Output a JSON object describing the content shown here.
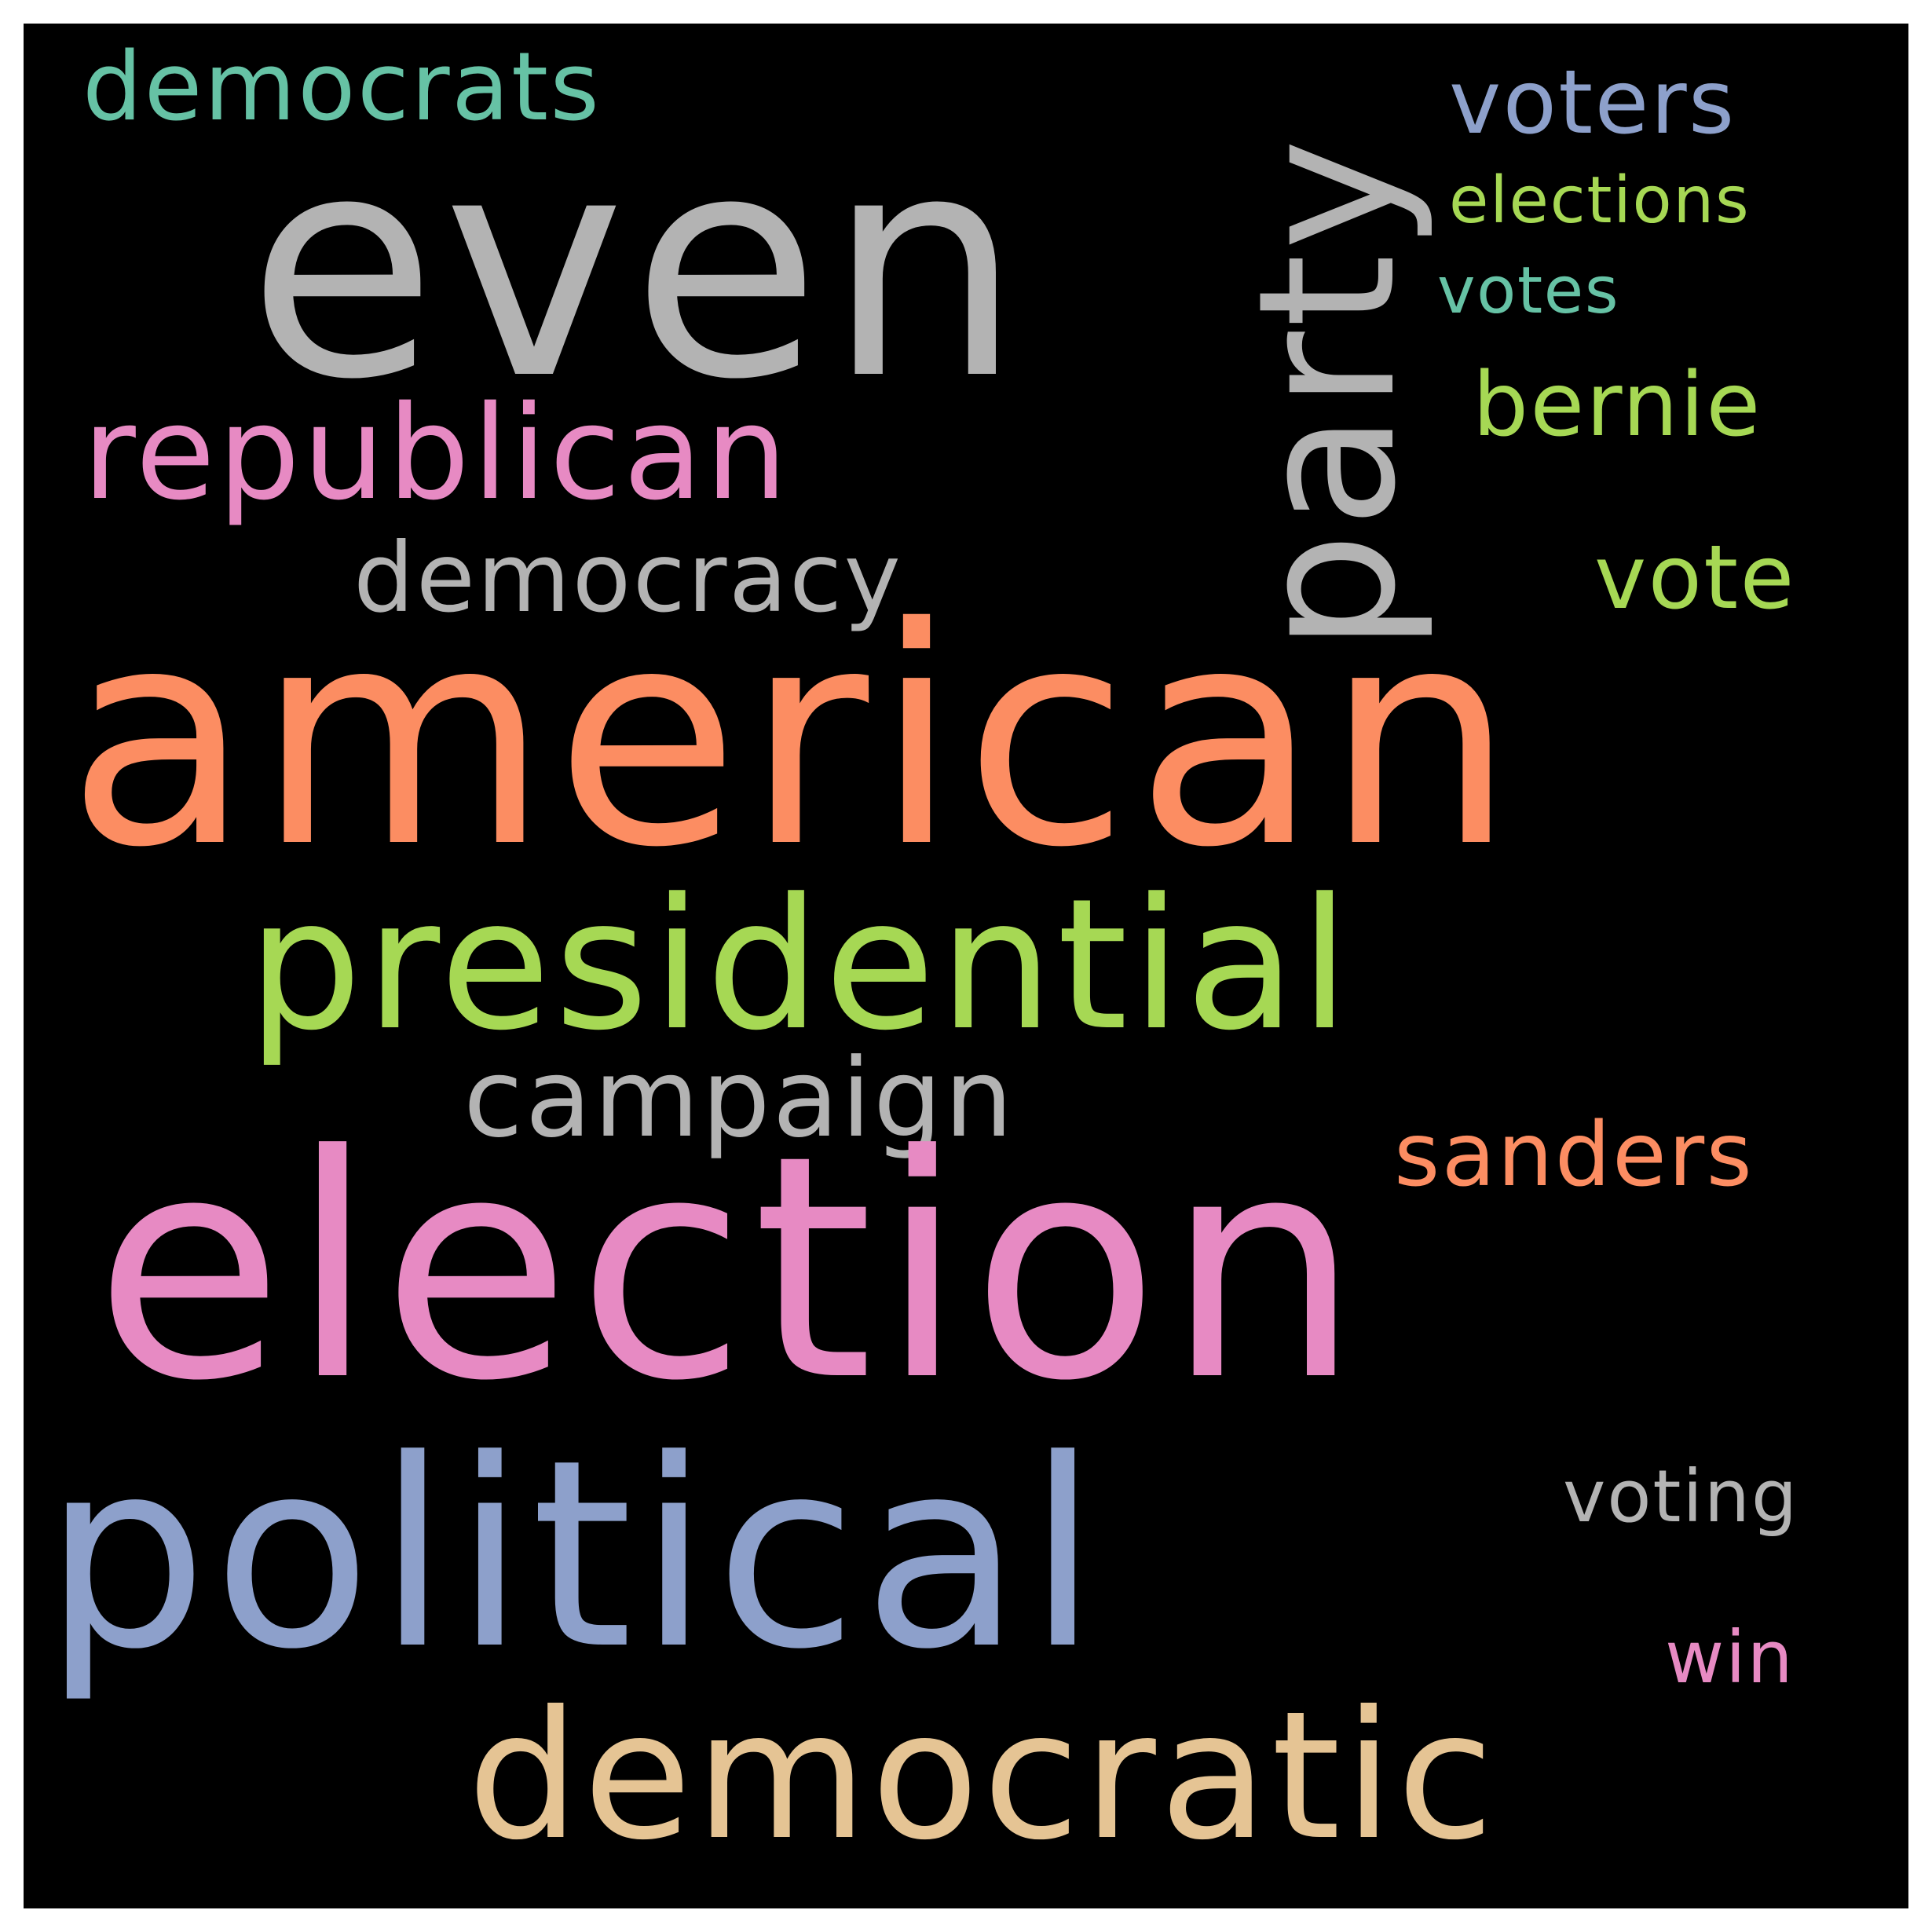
{
  "word_cloud": {
    "background_color": "#000000",
    "words": {
      "american": {
        "text": "american",
        "color": "#fc8d62"
      },
      "election": {
        "text": "election",
        "color": "#e78ac3"
      },
      "even": {
        "text": "even",
        "color": "#b3b3b3"
      },
      "political": {
        "text": "political",
        "color": "#8da0cb"
      },
      "presidential": {
        "text": "presidential",
        "color": "#a6d854"
      },
      "democratic": {
        "text": "democratic",
        "color": "#e5c494"
      },
      "party": {
        "text": "party",
        "color": "#b3b3b3"
      },
      "republican": {
        "text": "republican",
        "color": "#e78ac3"
      },
      "campaign": {
        "text": "campaign",
        "color": "#b3b3b3"
      },
      "democracy": {
        "text": "democracy",
        "color": "#b3b3b3"
      },
      "democrats": {
        "text": "democrats",
        "color": "#66c2a5"
      },
      "sanders": {
        "text": "sanders",
        "color": "#fc8d62"
      },
      "voters": {
        "text": "voters",
        "color": "#8da0cb"
      },
      "bernie": {
        "text": "bernie",
        "color": "#a6d854"
      },
      "vote": {
        "text": "vote",
        "color": "#a6d854"
      },
      "voting": {
        "text": "voting",
        "color": "#b3b3b3"
      },
      "win": {
        "text": "win",
        "color": "#e78ac3"
      },
      "elections": {
        "text": "elections",
        "color": "#a6d854"
      },
      "votes": {
        "text": "votes",
        "color": "#66c2a5"
      }
    }
  }
}
